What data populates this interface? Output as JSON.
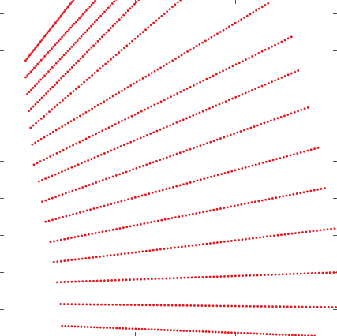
{
  "chart_data": {
    "type": "scatter",
    "title": "",
    "xlabel": "",
    "ylabel": "",
    "xlim": [
      0,
      10
    ],
    "ylim": [
      0,
      10
    ],
    "grid": false,
    "legend": "none",
    "marker_color": "#e8141b",
    "axis_color": "#555555",
    "x_ticks": [
      1,
      4,
      7,
      10
    ],
    "y_ticks": [
      0.8,
      1.9,
      3.0,
      4.1,
      5.2,
      6.3,
      7.4,
      8.5,
      9.6
    ],
    "series": [
      {
        "x_start": 0.7,
        "y_start": 8.2,
        "x_end": 2.3,
        "y_end": 10.2,
        "points": 40
      },
      {
        "x_start": 0.7,
        "y_start": 7.7,
        "x_end": 3.0,
        "y_end": 10.2,
        "points": 45
      },
      {
        "x_start": 0.75,
        "y_start": 7.2,
        "x_end": 3.6,
        "y_end": 10.2,
        "points": 50
      },
      {
        "x_start": 0.8,
        "y_start": 6.7,
        "x_end": 4.3,
        "y_end": 10.2,
        "points": 55
      },
      {
        "x_start": 0.85,
        "y_start": 6.2,
        "x_end": 5.6,
        "y_end": 10.2,
        "points": 60
      },
      {
        "x_start": 0.9,
        "y_start": 5.7,
        "x_end": 8.0,
        "y_end": 9.9,
        "points": 80
      },
      {
        "x_start": 0.95,
        "y_start": 5.1,
        "x_end": 8.7,
        "y_end": 8.9,
        "points": 80
      },
      {
        "x_start": 1.1,
        "y_start": 4.6,
        "x_end": 8.9,
        "y_end": 7.9,
        "points": 80
      },
      {
        "x_start": 1.2,
        "y_start": 4.0,
        "x_end": 9.2,
        "y_end": 6.8,
        "points": 80
      },
      {
        "x_start": 1.3,
        "y_start": 3.4,
        "x_end": 9.5,
        "y_end": 5.6,
        "points": 80
      },
      {
        "x_start": 1.45,
        "y_start": 2.8,
        "x_end": 9.7,
        "y_end": 4.4,
        "points": 80
      },
      {
        "x_start": 1.55,
        "y_start": 2.2,
        "x_end": 10.0,
        "y_end": 3.2,
        "points": 80
      },
      {
        "x_start": 1.65,
        "y_start": 1.6,
        "x_end": 10.3,
        "y_end": 1.9,
        "points": 80
      },
      {
        "x_start": 1.75,
        "y_start": 0.95,
        "x_end": 10.6,
        "y_end": 0.85,
        "points": 80
      },
      {
        "x_start": 1.8,
        "y_start": 0.3,
        "x_end": 9.4,
        "y_end": 0.0,
        "points": 80
      }
    ]
  }
}
